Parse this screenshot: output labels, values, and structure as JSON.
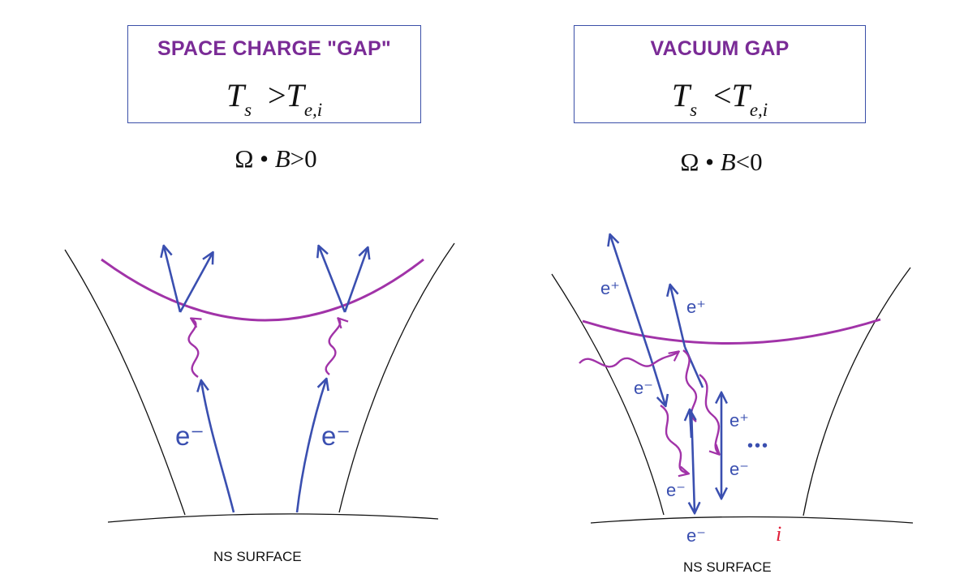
{
  "colors": {
    "electron_blue": "#3a4fb0",
    "gap_purple": "#a133a8",
    "title_purple": "#7a2b96",
    "ion_red": "#e0203a"
  },
  "left_panel": {
    "box_title": "SPACE CHARGE \"GAP\"",
    "box_eq": {
      "lhs": "T",
      "lhs_sub": "s",
      "op": ">",
      "rhs": "T",
      "rhs_sub": "e,i"
    },
    "condition": {
      "omega": "Ω",
      "dot": "•",
      "b": "B",
      "op": ">",
      "zero": "0"
    },
    "labels": {
      "electron_a": "e⁻",
      "electron_b": "e⁻"
    },
    "surface_label": "NS SURFACE"
  },
  "right_panel": {
    "box_title": "VACUUM GAP",
    "box_eq": {
      "lhs": "T",
      "lhs_sub": "s",
      "op": "<",
      "rhs": "T",
      "rhs_sub": "e,i"
    },
    "condition": {
      "omega": "Ω",
      "dot": "•",
      "b": "B",
      "op": "<",
      "zero": "0"
    },
    "labels": {
      "positron_1": "e⁺",
      "positron_2": "e⁺",
      "electron_1": "e⁻",
      "positron_3": "e⁺",
      "electron_2": "e⁻",
      "electron_3": "e⁻",
      "electron_surface": "e⁻",
      "ellipsis": "•••",
      "ion": "i"
    },
    "surface_label": "NS SURFACE"
  }
}
